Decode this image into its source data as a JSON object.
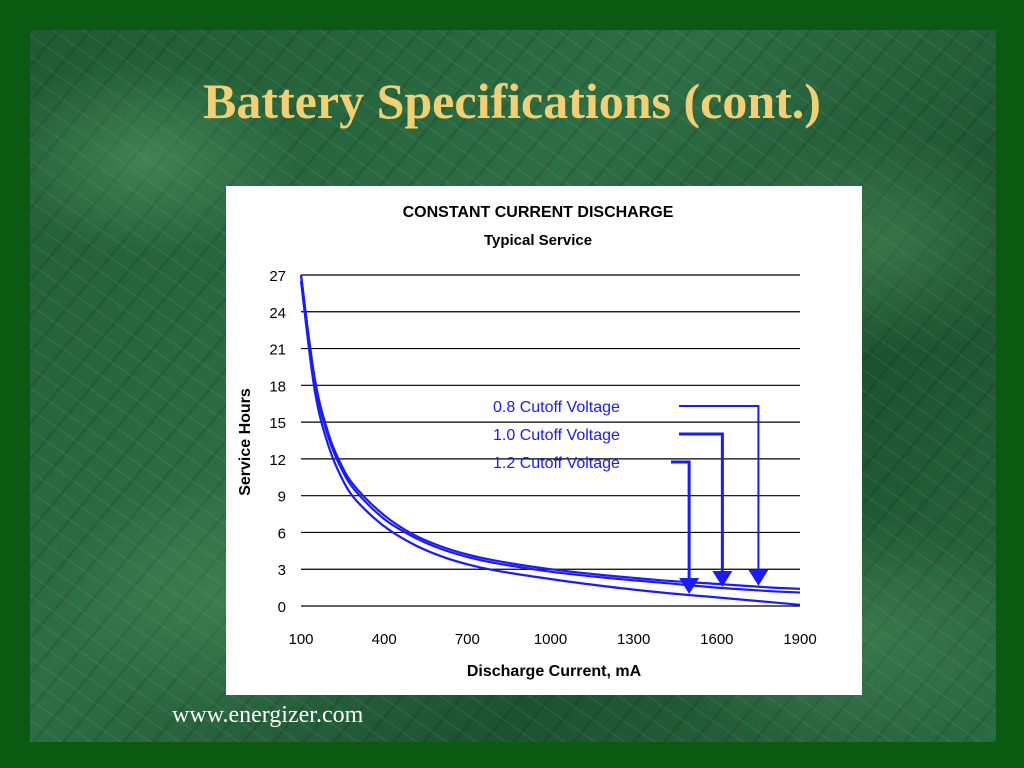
{
  "slide": {
    "title": "Battery Specifications (cont.)",
    "source": "www.energizer.com"
  },
  "colors": {
    "background": "#0a5a12",
    "title": "#f3cf73",
    "curve": "#1a1aff",
    "grid": "#000000"
  },
  "chart_data": {
    "type": "line",
    "title": "CONSTANT CURRENT DISCHARGE",
    "subtitle": "Typical Service",
    "xlabel": "Discharge Current, mA",
    "ylabel": "Service Hours",
    "xlim": [
      100,
      1900
    ],
    "ylim": [
      0,
      27
    ],
    "x_ticks": [
      100,
      400,
      700,
      1000,
      1300,
      1600,
      1900
    ],
    "y_ticks": [
      0,
      3,
      6,
      9,
      12,
      15,
      18,
      21,
      24,
      27
    ],
    "grid": "horizontal",
    "x": [
      100,
      150,
      200,
      250,
      300,
      400,
      500,
      600,
      700,
      800,
      1000,
      1200,
      1400,
      1600,
      1800,
      1900
    ],
    "series": [
      {
        "name": "0.8 Cutoff Voltage",
        "arrow_x": 1750,
        "values": [
          27,
          18.5,
          14,
          11.3,
          9.6,
          7.4,
          5.9,
          4.9,
          4.2,
          3.7,
          3.0,
          2.5,
          2.1,
          1.8,
          1.5,
          1.4
        ]
      },
      {
        "name": "1.0 Cutoff Voltage",
        "arrow_x": 1620,
        "values": [
          27,
          18.2,
          13.7,
          11.0,
          9.3,
          7.1,
          5.7,
          4.7,
          4.0,
          3.5,
          2.8,
          2.3,
          1.9,
          1.5,
          1.2,
          1.1
        ]
      },
      {
        "name": "1.2 Cutoff Voltage",
        "arrow_x": 1500,
        "values": [
          26.5,
          17.5,
          13.0,
          10.3,
          8.6,
          6.5,
          5.1,
          4.1,
          3.4,
          2.9,
          2.2,
          1.6,
          1.1,
          0.7,
          0.3,
          0.1
        ]
      }
    ]
  }
}
